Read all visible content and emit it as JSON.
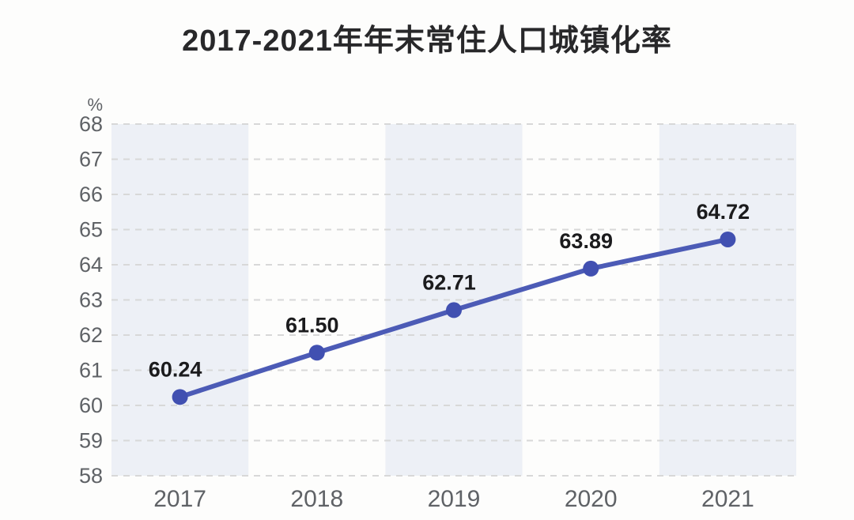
{
  "title": "2017-2021年年末常住人口城镇化率",
  "colors": {
    "line": "#4C5BB6",
    "marker": "#4150B1",
    "band": "#EDF0F6",
    "grid": "#D8D8D8",
    "axis_text": "#5F6266",
    "value_text": "#1B1B1D",
    "title_text": "#28282A",
    "background": "#FDFDFC"
  },
  "chart_data": {
    "type": "line",
    "title": "2017-2021年年末常住人口城镇化率",
    "categories": [
      "2017",
      "2018",
      "2019",
      "2020",
      "2021"
    ],
    "values": [
      60.24,
      61.5,
      62.71,
      63.89,
      64.72
    ],
    "value_labels": [
      "60.24",
      "61.50",
      "62.71",
      "63.89",
      "64.72"
    ],
    "xlabel": "",
    "ylabel": "%",
    "ylim": [
      58,
      68
    ],
    "ytick_step": 1,
    "ytick_labels": [
      "58",
      "59",
      "60",
      "61",
      "62",
      "63",
      "64",
      "65",
      "66",
      "67",
      "68"
    ],
    "grid": "horizontal-dashed",
    "plot_background": "alternating-vertical-bands",
    "legend": "none"
  }
}
